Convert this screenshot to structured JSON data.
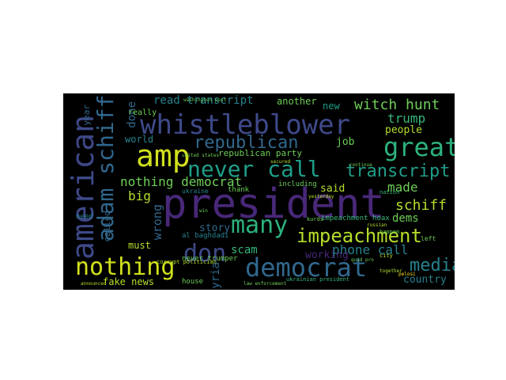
{
  "words": {
    "president": "president",
    "whistleblower": "whistleblower",
    "amp": "amp",
    "great": "great",
    "democrat": "democrat",
    "many": "many",
    "impeachment": "impeachment",
    "american": "american",
    "adam_schiff": "adam schiff",
    "never_call": "never call",
    "nothing": "nothing",
    "don": "don",
    "republican": "republican",
    "transcript": "transcript",
    "nothing_democrat": "nothing democrat",
    "witch_hunt": "witch hunt",
    "media": "media",
    "schiff": "schiff",
    "phone_call": "phone call",
    "read_transcript": "read transcript",
    "made": "made",
    "fake_news": "fake news",
    "country": "country",
    "trump": "trump",
    "people": "people",
    "big": "big",
    "wrong": "wrong",
    "story": "story",
    "scam": "scam",
    "syria": "syria",
    "said": "said",
    "dems": "dems",
    "another": "another",
    "new": "new",
    "job": "job",
    "must": "must",
    "working": "working",
    "done": "done",
    "world": "world",
    "called": "called",
    "republican_party": "republican party",
    "year": "year",
    "really": "really",
    "need": "need",
    "ukraine": "ukraine",
    "thank": "thank",
    "including": "including",
    "house": "house",
    "never_trumper": "never trumper",
    "al_baghdadi": "al baghdadi",
    "impeachment_hoax": "impeachment hoax",
    "ukrainian_president": "ukrainian president",
    "corrupt_politician": "corrupt politician",
    "washington_post": "washington post",
    "kurds": "kurds",
    "left": "left",
    "nation": "nation",
    "city": "city",
    "happen": "happen",
    "together": "together",
    "united_states": "united states",
    "law_enforcement": "law enforcement",
    "announced": "announced",
    "quid_pro": "quid pro",
    "continue": "continue",
    "secured": "secured",
    "yesterday": "yesterday",
    "pelosi": "pelosi",
    "win": "win",
    "russian": "russian"
  },
  "colors": {
    "background": "#000000",
    "palette": [
      "#440154",
      "#482878",
      "#3e4989",
      "#31688e",
      "#26828e",
      "#1f9e89",
      "#35b779",
      "#6ece58",
      "#b5de2b",
      "#fde725"
    ]
  }
}
